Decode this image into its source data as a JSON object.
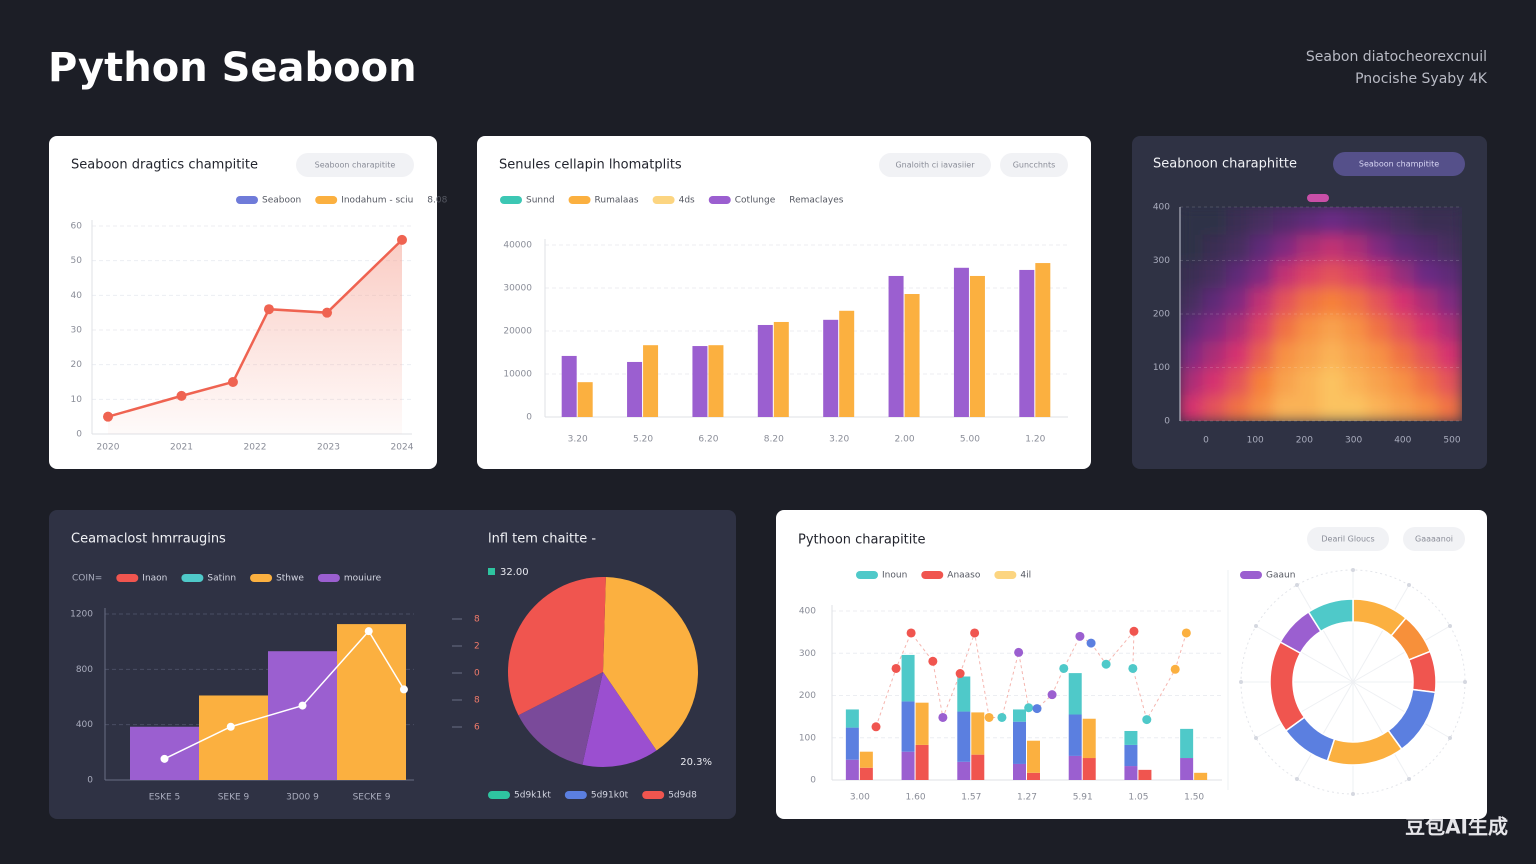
{
  "header": {
    "title": "Python Seaboon",
    "subtitle": [
      "Seabon diatocheorexcnuil",
      "Pnocishe Syaby 4K"
    ],
    "watermark": "豆包AI生成"
  },
  "chart_data": [
    {
      "type": "line",
      "title": "Seaboon dragtics champitite",
      "buttons": [
        "Seaboon charapitite"
      ],
      "legend": [
        {
          "name": "Seaboon",
          "color": "#6f7bd9"
        },
        {
          "name": "Inodahum - sciu",
          "color": "#fbb040"
        },
        {
          "name": "8.08"
        }
      ],
      "x": [
        0,
        1,
        1.7,
        2.19,
        2.98,
        4
      ],
      "values": [
        5,
        11,
        15,
        36,
        35,
        56
      ],
      "color": "#ef6351",
      "xlim": [
        0,
        4
      ],
      "xticks": [
        {
          "value": 0,
          "label": "2020"
        },
        {
          "value": 1,
          "label": "2021"
        },
        {
          "value": 2,
          "label": "2022"
        },
        {
          "value": 3,
          "label": "2023"
        },
        {
          "value": 4,
          "label": "2024"
        }
      ],
      "ylim": [
        0,
        60
      ],
      "yticks": [
        0,
        10,
        20,
        30,
        40,
        50,
        60
      ],
      "grid": true
    },
    {
      "type": "bar",
      "title": "Senules cellapin lhomatplits",
      "buttons": [
        "Gnaloith ci iavasiier",
        "Guncchnts"
      ],
      "legend": [
        {
          "name": "Sunnd",
          "color": "#3cc7b4"
        },
        {
          "name": "Rumalaas",
          "color": "#fbb040"
        },
        {
          "name": "4ds",
          "color": "#fcd581"
        },
        {
          "name": "Cotlunge",
          "color": "#9b5fd0"
        },
        {
          "name": "Remaclayes"
        }
      ],
      "categories": [
        "3.20",
        "5.20",
        "6.20",
        "8.20",
        "3.20",
        "2.00",
        "5.00",
        "1.20"
      ],
      "series": [
        {
          "color": "#9b5fd0",
          "values": [
            14200,
            12800,
            16500,
            21400,
            22600,
            32800,
            34700,
            34200
          ]
        },
        {
          "color": "#fbb040",
          "values": [
            8100,
            16700,
            16700,
            22100,
            24700,
            28600,
            32800,
            35800
          ]
        }
      ],
      "ylim": [
        0,
        40000
      ],
      "yticks": [
        0,
        10000,
        20000,
        30000,
        40000
      ],
      "grid": true
    },
    {
      "type": "heatmap",
      "title": "Seabnoon charaphitte",
      "buttons": [
        "Seaboon champitite"
      ],
      "legend": [
        {
          "name": "",
          "color": "#c94fa8"
        }
      ],
      "colormap": [
        "#2e3047",
        "#6b2a84",
        "#d6336f",
        "#f6803b",
        "#fcd46a"
      ],
      "xlim": [
        0,
        500
      ],
      "xticks": [
        0,
        100,
        200,
        300,
        400,
        500
      ],
      "ylim": [
        0,
        400
      ],
      "yticks": [
        0,
        100,
        200,
        300,
        400
      ],
      "z": [
        [
          0.5,
          0.6,
          0.7,
          0.8,
          0.9,
          0.9,
          0.95,
          0.95,
          0.9,
          0.85,
          0.8,
          0.7
        ],
        [
          0.4,
          0.5,
          0.6,
          0.75,
          0.85,
          0.9,
          0.95,
          0.9,
          0.85,
          0.8,
          0.7,
          0.6
        ],
        [
          0.3,
          0.4,
          0.5,
          0.65,
          0.8,
          0.85,
          0.9,
          0.85,
          0.8,
          0.7,
          0.6,
          0.5
        ],
        [
          0.2,
          0.3,
          0.4,
          0.55,
          0.7,
          0.8,
          0.85,
          0.8,
          0.7,
          0.6,
          0.5,
          0.4
        ],
        [
          0.1,
          0.2,
          0.3,
          0.45,
          0.6,
          0.7,
          0.75,
          0.7,
          0.6,
          0.5,
          0.4,
          0.3
        ],
        [
          0.05,
          0.1,
          0.2,
          0.3,
          0.45,
          0.55,
          0.6,
          0.55,
          0.45,
          0.35,
          0.25,
          0.2
        ],
        [
          0,
          0.05,
          0.1,
          0.2,
          0.3,
          0.4,
          0.45,
          0.4,
          0.3,
          0.2,
          0.15,
          0.1
        ],
        [
          0,
          0,
          0.05,
          0.1,
          0.15,
          0.2,
          0.25,
          0.2,
          0.15,
          0.1,
          0.05,
          0.05
        ]
      ]
    },
    {
      "type": "combo",
      "title": "Ceamaclost hmrraugins",
      "legend_title": "COIN=",
      "legend": [
        {
          "name": "Inaon",
          "color": "#f0554f"
        },
        {
          "name": "Satinn",
          "color": "#4fc9c9"
        },
        {
          "name": "Sthwe",
          "color": "#fbb040"
        },
        {
          "name": "mouiure",
          "color": "#9b5fd0"
        }
      ],
      "categories": [
        "ESKE 5",
        "SEKE 9",
        "3D00 9",
        "SECKE 9"
      ],
      "series": [
        {
          "kind": "bar",
          "colors": [
            "#9b5fd0",
            "#fbb040",
            "#9b5fd0",
            "#fbb040"
          ],
          "values": [
            385,
            611,
            931,
            1127
          ]
        },
        {
          "kind": "line",
          "color": "#ffffff",
          "x": [
            0,
            0.96,
            2,
            2.96,
            3.47
          ],
          "values": [
            153,
            385,
            538,
            1076,
            655
          ]
        }
      ],
      "ylim": [
        0,
        1200
      ],
      "yticks": [
        0,
        400,
        800,
        1200
      ],
      "grid": true
    },
    {
      "type": "pie",
      "title": "lnfl tem chaitte -",
      "top_label": "32.00",
      "annotation": "20.3%",
      "side_labels": [
        "8",
        "2",
        "0",
        "8",
        "6"
      ],
      "legend": [
        {
          "name": "5d9k1kt",
          "color": "#2ec4a0"
        },
        {
          "name": "5d91k0t",
          "color": "#5b7fe0"
        },
        {
          "name": "5d9d8",
          "color": "#f0554f"
        }
      ],
      "values": [
        40,
        13,
        14,
        33
      ],
      "colors": [
        "#fbb040",
        "#9b4fd0",
        "#7a4a9a",
        "#f0554f"
      ]
    },
    {
      "type": "combo",
      "title": "Pythoon charapitite",
      "buttons": [
        "Dearil Gloucs",
        "Gaaaanoi"
      ],
      "legend": [
        {
          "name": "Inoun",
          "color": "#4fc9c9"
        },
        {
          "name": "Anaaso",
          "color": "#f0554f"
        },
        {
          "name": "4il",
          "color": "#fcd581"
        }
      ],
      "categories": [
        "3.00",
        "1.60",
        "1.57",
        "1.27",
        "5.91",
        "1.05",
        "1.50"
      ],
      "series": [
        {
          "kind": "bar",
          "stack": "a",
          "color": "#9b5fd0",
          "values": [
            48,
            67,
            43,
            38,
            57,
            33,
            52
          ]
        },
        {
          "kind": "bar",
          "stack": "a",
          "color": "#5b7fe0",
          "values": [
            76,
            119,
            119,
            100,
            98,
            50,
            0
          ]
        },
        {
          "kind": "bar",
          "stack": "a",
          "color": "#4fc9c9",
          "values": [
            43,
            110,
            83,
            29,
            98,
            33,
            69
          ]
        },
        {
          "kind": "bar",
          "stack": "b",
          "color": "#f0554f",
          "values": [
            29,
            83,
            60,
            17,
            52,
            24,
            0
          ]
        },
        {
          "kind": "bar",
          "stack": "b",
          "color": "#fbb040",
          "values": [
            38,
            100,
            100,
            76,
            93,
            0,
            17
          ]
        },
        {
          "kind": "scatter",
          "x": [
            0.29,
            0.65,
            0.92,
            1.31,
            1.49,
            1.8,
            2.06,
            2.32,
            2.55,
            2.85,
            3.03,
            3.18,
            3.45,
            3.66,
            3.95,
            4.15,
            4.42,
            4.92,
            4.9,
            5.15,
            5.66,
            5.86
          ],
          "values": [
            126,
            264,
            348,
            281,
            148,
            252,
            348,
            148,
            148,
            302,
            171,
            169,
            202,
            264,
            340,
            324,
            274,
            352,
            264,
            143,
            262,
            348
          ],
          "colors": [
            "#f0554f",
            "#f0554f",
            "#f0554f",
            "#f0554f",
            "#9b5fd0",
            "#f0554f",
            "#f0554f",
            "#fbb040",
            "#4fc9c9",
            "#9b5fd0",
            "#4fc9c9",
            "#5b7fe0",
            "#9b5fd0",
            "#4fc9c9",
            "#9b5fd0",
            "#5b7fe0",
            "#4fc9c9",
            "#f0554f",
            "#4fc9c9",
            "#4fc9c9",
            "#fbb040",
            "#fbb040"
          ]
        }
      ],
      "ylim": [
        0,
        400
      ],
      "yticks": [
        0,
        100,
        200,
        300,
        400
      ],
      "grid": true
    },
    {
      "type": "donut",
      "legend": [
        {
          "name": "Gaaun",
          "color": "#9b5fd0"
        }
      ],
      "values": [
        11,
        8,
        8,
        13,
        15,
        10,
        18,
        8,
        9
      ],
      "colors": [
        "#fbb040",
        "#f7903a",
        "#f0554f",
        "#5b7fe0",
        "#fbb040",
        "#5b7fe0",
        "#f0554f",
        "#9b5fd0",
        "#4fc9c9"
      ]
    }
  ]
}
